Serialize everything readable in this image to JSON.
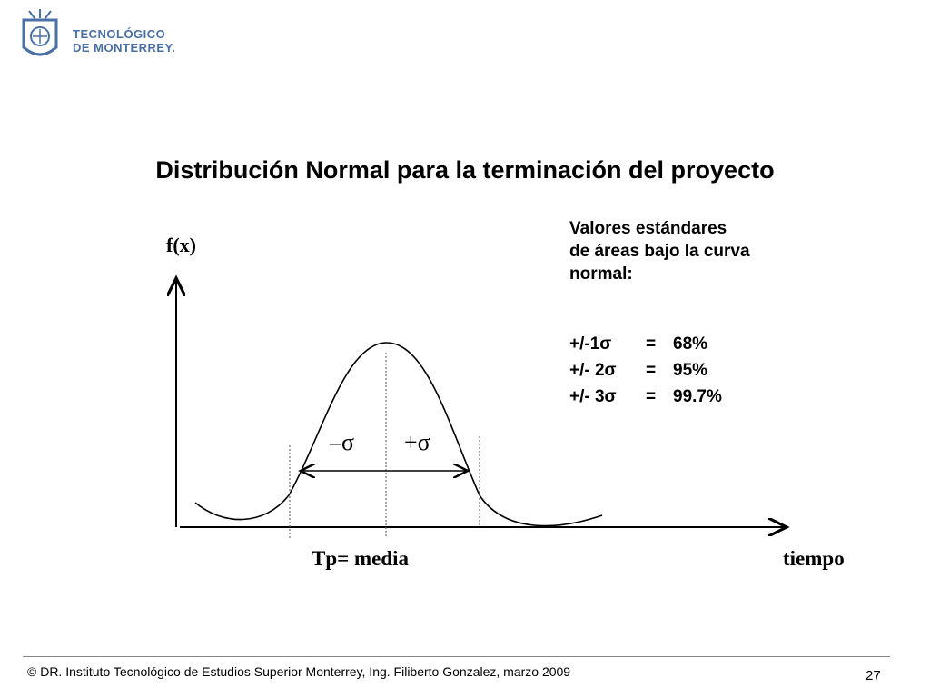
{
  "logo": {
    "line1": "TECNOLÓGICO",
    "line2": "DE MONTERREY."
  },
  "slide": {
    "title": "Distribución Normal para la terminación del proyecto",
    "y_label": "f(x)",
    "minus_sigma": "–σ",
    "plus_sigma": "+σ",
    "mean_label": "Tp= media",
    "x_label": "tiempo"
  },
  "info": {
    "lines": [
      "Valores estándares",
      "de áreas bajo la curva",
      "normal:"
    ],
    "rows": [
      {
        "range": "+/-1σ",
        "eq": "=",
        "pct": "68%"
      },
      {
        "range": "+/- 2σ",
        "eq": "=",
        "pct": "95%"
      },
      {
        "range": "+/- 3σ",
        "eq": "=",
        "pct": "99.7%"
      }
    ]
  },
  "footer": {
    "text": "© DR. Instituto Tecnológico de Estudios Superior  Monterrey, Ing. Filiberto Gonzalez,  marzo 2009",
    "page": "27"
  },
  "colors": {
    "logo": "#4a6fa5",
    "ink": "#000000"
  }
}
